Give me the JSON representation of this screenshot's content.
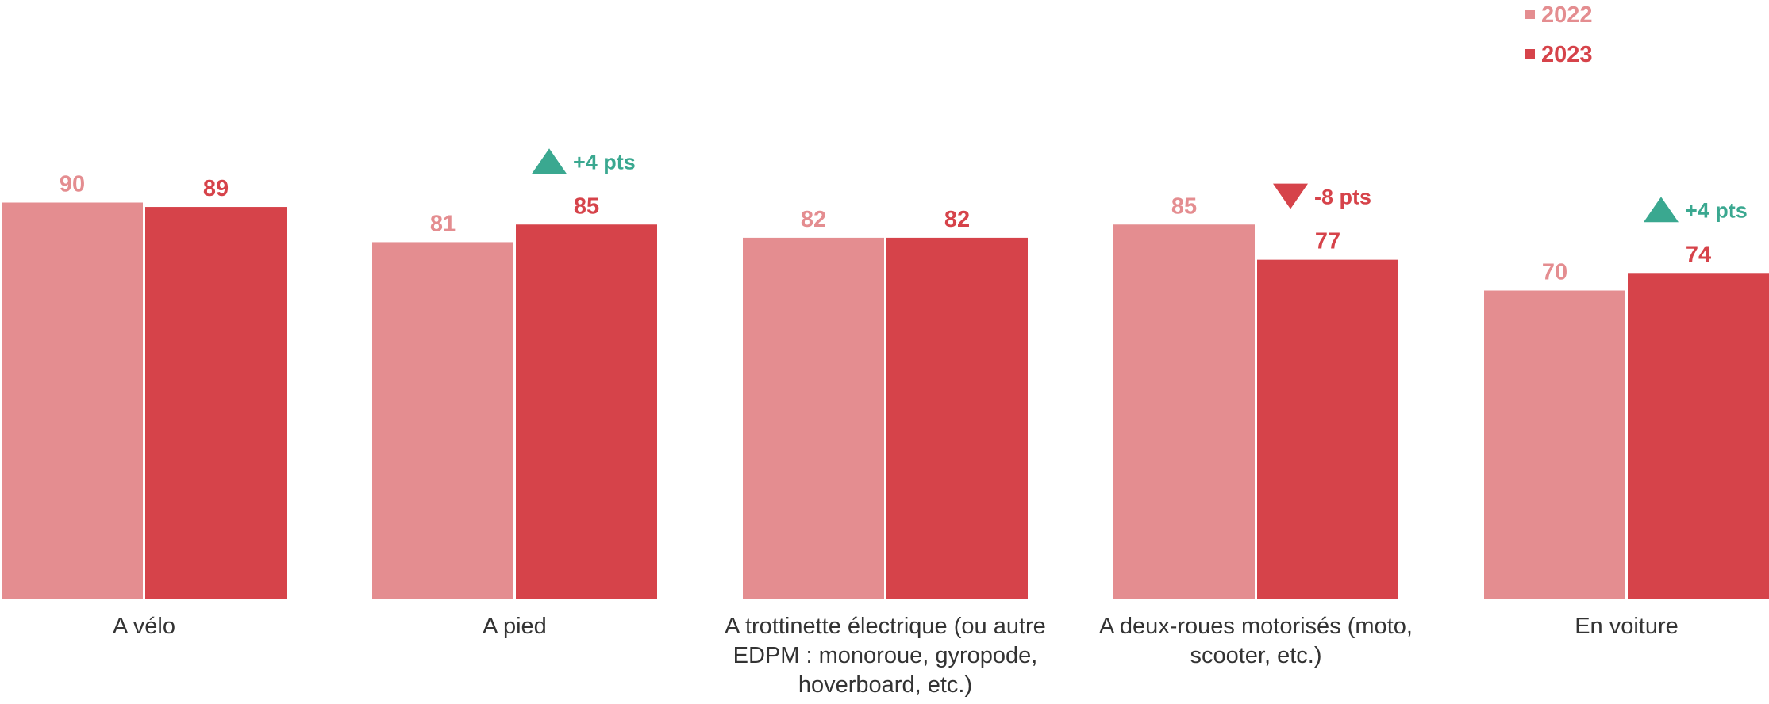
{
  "colors": {
    "2022": "#e48d90",
    "2023": "#d6434a",
    "up": "#3aa890",
    "down": "#d6434a"
  },
  "legend": [
    {
      "label": "2022",
      "color": "#e48d90"
    },
    {
      "label": "2023",
      "color": "#d6434a"
    }
  ],
  "chart_data": {
    "type": "bar",
    "categories": [
      "A vélo",
      "A pied",
      "A trottinette électrique (ou autre EDPM : monoroue, gyropode, hoverboard, etc.)",
      "A deux-roues motorisés (moto, scooter, etc.)",
      "En voiture"
    ],
    "series": [
      {
        "name": "2022",
        "values": [
          90,
          81,
          82,
          85,
          70
        ]
      },
      {
        "name": "2023",
        "values": [
          89,
          85,
          82,
          77,
          74
        ]
      }
    ],
    "annotations": [
      null,
      {
        "text": "+4 pts",
        "direction": "up"
      },
      null,
      {
        "text": "-8 pts",
        "direction": "down"
      },
      {
        "text": "+4 pts",
        "direction": "up"
      }
    ],
    "ylim": [
      0,
      100
    ],
    "grid": false,
    "legend_position": "top-right"
  }
}
